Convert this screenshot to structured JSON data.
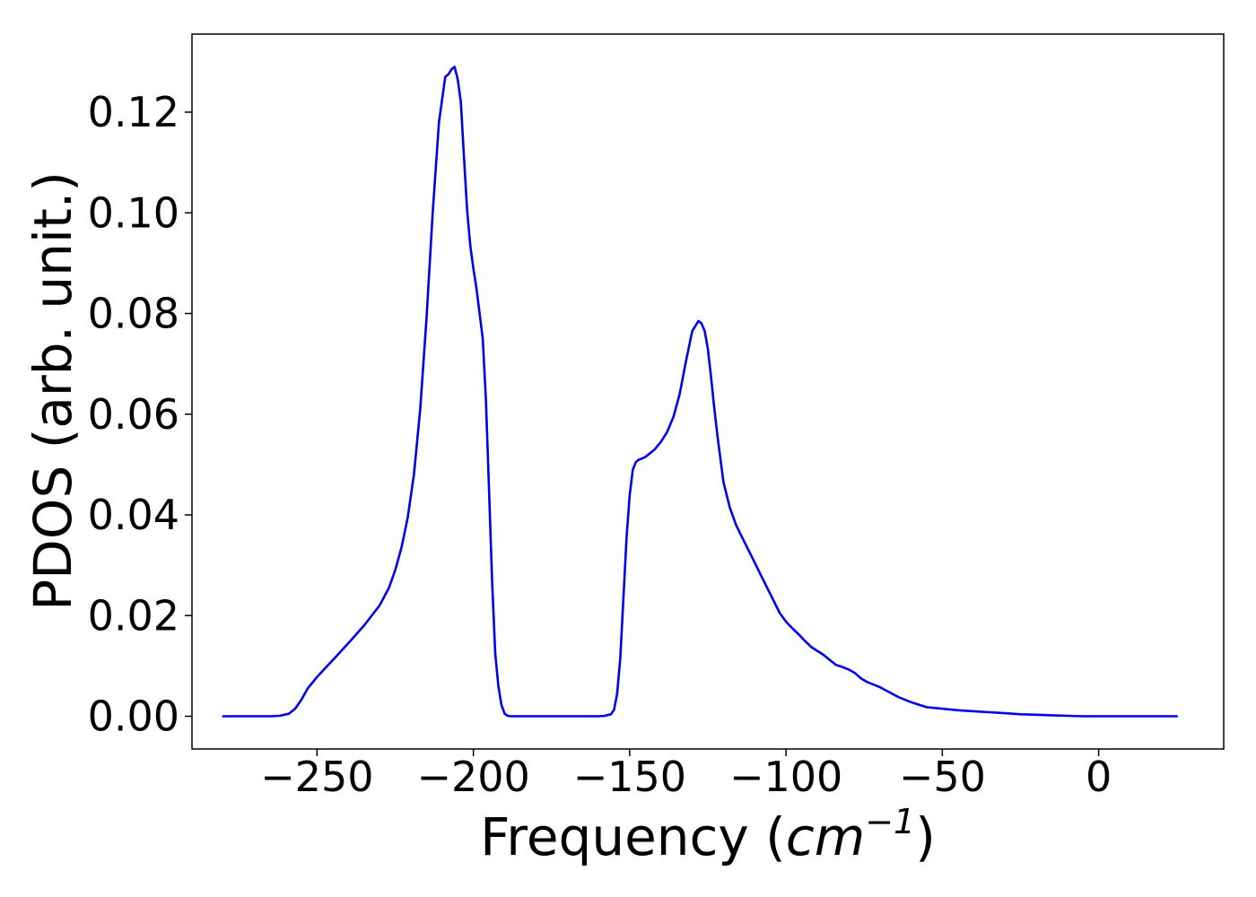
{
  "chart_data": {
    "type": "line",
    "xlabel": "Frequency (cm⁻¹)",
    "xlabel_parts": {
      "prefix": "Frequency (",
      "unit": "cm",
      "exponent": "−1",
      "suffix": ")"
    },
    "ylabel": "PDOS (arb. unit.)",
    "xlim": [
      -290,
      40
    ],
    "ylim": [
      -0.0065,
      0.1355
    ],
    "xticks": [
      -250,
      -200,
      -150,
      -100,
      -50,
      0
    ],
    "xtick_labels": [
      "−250",
      "−200",
      "−150",
      "−100",
      "−50",
      "0"
    ],
    "yticks": [
      0.0,
      0.02,
      0.04,
      0.06,
      0.08,
      0.1,
      0.12
    ],
    "ytick_labels": [
      "0.00",
      "0.02",
      "0.04",
      "0.06",
      "0.08",
      "0.10",
      "0.12"
    ],
    "grid": false,
    "legend": false,
    "series": [
      {
        "color": "#0000ee",
        "x": [
          -280,
          -265,
          -262,
          -259,
          -257,
          -255,
          -253,
          -250,
          -247,
          -244,
          -240,
          -235,
          -230,
          -227,
          -225,
          -223,
          -221,
          -219,
          -217,
          -215,
          -213,
          -211,
          -209,
          -208,
          -207,
          -206,
          -205,
          -204,
          -203,
          -202,
          -201,
          -200,
          -199,
          -198,
          -197,
          -196,
          -195,
          -194,
          -193,
          -192,
          -191,
          -190,
          -189,
          -188,
          -187,
          -186,
          -185,
          -180,
          -170,
          -160,
          -158,
          -156,
          -155,
          -154,
          -153,
          -152,
          -151,
          -150,
          -149,
          -148,
          -147,
          -146,
          -145,
          -144,
          -143,
          -142,
          -140,
          -138,
          -136,
          -134,
          -132,
          -130,
          -128,
          -127,
          -126,
          -125,
          -124,
          -123,
          -122,
          -120,
          -118,
          -116,
          -114,
          -112,
          -110,
          -108,
          -106,
          -104,
          -102,
          -100,
          -98,
          -96,
          -94,
          -92,
          -90,
          -88,
          -86,
          -84,
          -82,
          -80,
          -78,
          -76,
          -74,
          -72,
          -70,
          -67,
          -64,
          -60,
          -55,
          -50,
          -45,
          -40,
          -35,
          -30,
          -25,
          -20,
          -15,
          -10,
          -5,
          0,
          5,
          10,
          15,
          20,
          25
        ],
        "y": [
          0.0,
          0.0,
          0.0001,
          0.0005,
          0.0015,
          0.0033,
          0.0055,
          0.0078,
          0.0098,
          0.0118,
          0.0145,
          0.018,
          0.022,
          0.0255,
          0.029,
          0.0335,
          0.0395,
          0.048,
          0.061,
          0.079,
          0.1,
          0.118,
          0.127,
          0.1275,
          0.1285,
          0.129,
          0.1265,
          0.122,
          0.111,
          0.1005,
          0.0935,
          0.089,
          0.085,
          0.08,
          0.075,
          0.063,
          0.045,
          0.027,
          0.0125,
          0.006,
          0.0022,
          0.0005,
          0.0001,
          0.0,
          0.0,
          0.0,
          0.0,
          0.0,
          0.0,
          0.0,
          0.0001,
          0.0004,
          0.0013,
          0.0045,
          0.0115,
          0.0235,
          0.0355,
          0.044,
          0.049,
          0.0505,
          0.051,
          0.0512,
          0.0515,
          0.052,
          0.0525,
          0.053,
          0.0545,
          0.0565,
          0.0595,
          0.064,
          0.0705,
          0.0765,
          0.0785,
          0.078,
          0.0765,
          0.073,
          0.0675,
          0.0615,
          0.056,
          0.0465,
          0.0415,
          0.038,
          0.0355,
          0.033,
          0.0305,
          0.028,
          0.0255,
          0.023,
          0.0205,
          0.0188,
          0.0175,
          0.0163,
          0.015,
          0.0138,
          0.013,
          0.0122,
          0.0112,
          0.0102,
          0.0098,
          0.0093,
          0.0086,
          0.0075,
          0.0068,
          0.0063,
          0.0058,
          0.0048,
          0.0038,
          0.0028,
          0.0018,
          0.0015,
          0.0012,
          0.001,
          0.0008,
          0.0006,
          0.0004,
          0.0003,
          0.0002,
          0.0001,
          0.0,
          0.0,
          0.0,
          0.0,
          0.0,
          0.0,
          0.0
        ]
      }
    ]
  }
}
